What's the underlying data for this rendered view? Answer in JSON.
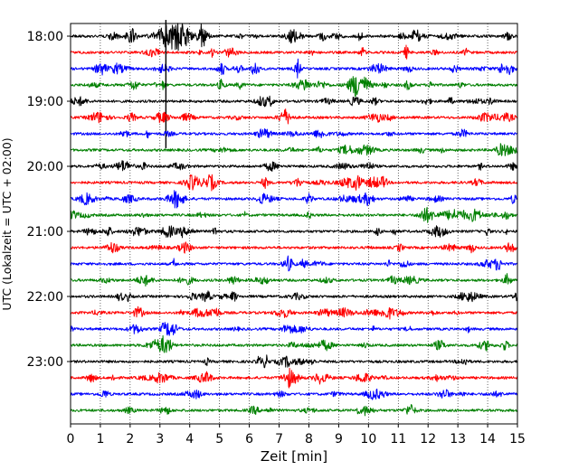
{
  "chart_data": {
    "type": "line",
    "title": "",
    "xlabel": "Zeit  [min]",
    "ylabel": "UTC (Lokalzeit = UTC + 02:00)",
    "xlim": [
      0,
      15
    ],
    "xticks": [
      0,
      1,
      2,
      3,
      4,
      5,
      6,
      7,
      8,
      9,
      10,
      11,
      12,
      13,
      14,
      15
    ],
    "xtick_labels": [
      "0",
      "1",
      "2",
      "3",
      "4",
      "5",
      "6",
      "7",
      "8",
      "9",
      "10",
      "11",
      "12",
      "13",
      "14",
      "15"
    ],
    "yticks": [
      "18:00",
      "19:00",
      "20:00",
      "21:00",
      "22:00",
      "23:00"
    ],
    "grid": "vertical dotted",
    "trace_interval_minutes": 15,
    "trace_start_times": [
      "18:00",
      "18:15",
      "18:30",
      "18:45",
      "19:00",
      "19:15",
      "19:30",
      "19:45",
      "20:00",
      "20:15",
      "20:30",
      "20:45",
      "21:00",
      "21:15",
      "21:30",
      "21:45",
      "22:00",
      "22:15",
      "22:30",
      "22:45",
      "23:00",
      "23:15",
      "23:30",
      "23:45"
    ],
    "trace_colors": [
      "#000000",
      "#ff0000",
      "#0000ff",
      "#008000"
    ],
    "notable_events": [
      {
        "trace": "18:00",
        "minute_start": 3.0,
        "minute_end": 3.9,
        "strength": "large"
      },
      {
        "trace": "18:00",
        "minute_start": 4.3,
        "minute_end": 4.5,
        "strength": "medium"
      },
      {
        "trace": "18:30",
        "minute_start": 6.1,
        "minute_end": 6.3,
        "strength": "medium"
      },
      {
        "trace": "18:30",
        "minute_start": 7.6,
        "minute_end": 7.7,
        "strength": "medium"
      },
      {
        "trace": "18:45",
        "minute_start": 3.2,
        "minute_end": 3.2,
        "strength": "spike"
      }
    ]
  }
}
